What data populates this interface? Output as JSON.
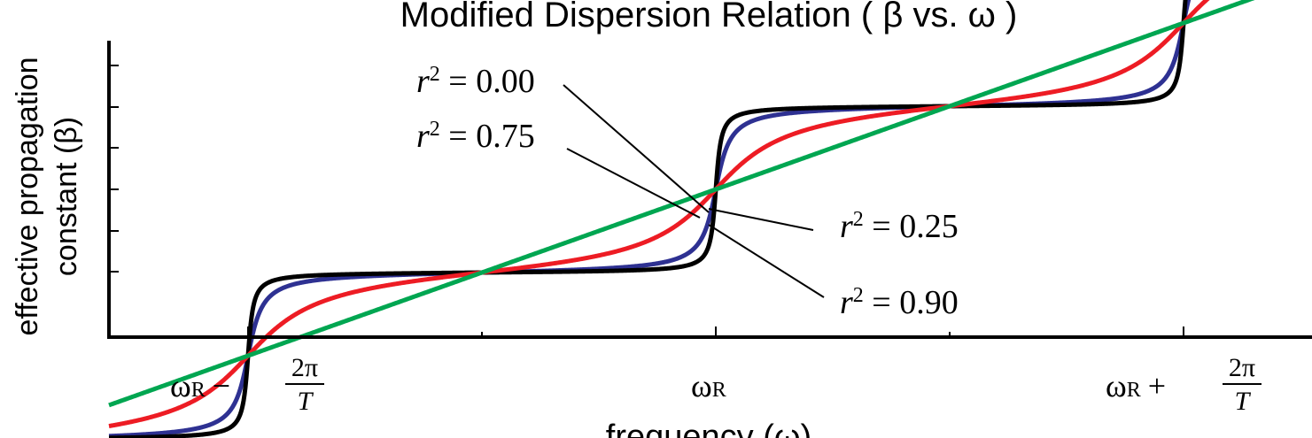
{
  "chart_data": {
    "type": "line",
    "title": "Modified Dispersion Relation ( β vs. ω )",
    "xlabel": "frequency (ω)",
    "ylabel_line1": "effective propagation",
    "ylabel_line2": "constant (β)",
    "x_ticks": [
      {
        "omega": "ω",
        "sub": "R",
        "sign": "−",
        "num": "2π",
        "den": "T"
      },
      {
        "omega": "ω",
        "sub": "R",
        "sign": "",
        "num": "",
        "den": ""
      },
      {
        "omega": "ω",
        "sub": "R",
        "sign": "+",
        "num": "2π",
        "den": "T"
      }
    ],
    "series": [
      {
        "name": "r² = 0.00",
        "r2": 0.0,
        "color": "#00a651"
      },
      {
        "name": "r² = 0.25",
        "r2": 0.25,
        "color": "#ed1c24"
      },
      {
        "name": "r² = 0.75",
        "r2": 0.75,
        "color": "#2e3192"
      },
      {
        "name": "r² = 0.90",
        "r2": 0.9,
        "color": "#000000"
      }
    ],
    "annotations": [
      {
        "var": "r",
        "exp": "2",
        "eq": " = 0.00"
      },
      {
        "var": "r",
        "exp": "2",
        "eq": " = 0.75"
      },
      {
        "var": "r",
        "exp": "2",
        "eq": " = 0.25"
      },
      {
        "var": "r",
        "exp": "2",
        "eq": " = 0.90"
      }
    ]
  }
}
